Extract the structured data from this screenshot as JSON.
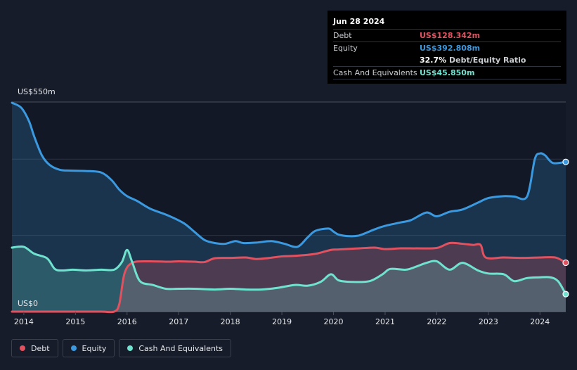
{
  "tooltip": {
    "date": "Jun 28 2024",
    "rows": [
      {
        "label": "Debt",
        "value": "US$128.342m",
        "color": "#e2515f"
      },
      {
        "label": "Equity",
        "value": "US$392.808m",
        "color": "#3b99e0"
      }
    ],
    "ratio": {
      "percent": "32.7%",
      "label": "Debt/Equity Ratio"
    },
    "cash": {
      "label": "Cash And Equivalents",
      "value": "US$45.850m",
      "color": "#6fe3cf"
    }
  },
  "legend": [
    {
      "name": "Debt",
      "color": "#e2515f"
    },
    {
      "name": "Equity",
      "color": "#3b99e0"
    },
    {
      "name": "Cash And Equivalents",
      "color": "#6fe3cf"
    }
  ],
  "chart_data": {
    "type": "area",
    "y_top_label": "US$550m",
    "y_bottom_label": "US$0",
    "ylim": [
      0,
      550
    ],
    "xlim": [
      2013.77,
      2024.5
    ],
    "x_ticks": [
      "2014",
      "2015",
      "2016",
      "2017",
      "2018",
      "2019",
      "2020",
      "2021",
      "2022",
      "2023",
      "2024"
    ],
    "grid": true,
    "legend_position": "bottom-left",
    "series": [
      {
        "name": "Equity",
        "color": "#3b99e0",
        "x": [
          2013.75,
          2013.95,
          2014.1,
          2014.2,
          2014.35,
          2014.5,
          2014.7,
          2014.9,
          2015.2,
          2015.5,
          2015.7,
          2015.85,
          2016.0,
          2016.2,
          2016.45,
          2016.8,
          2017.1,
          2017.3,
          2017.5,
          2017.7,
          2017.9,
          2018.1,
          2018.25,
          2018.5,
          2018.8,
          2019.05,
          2019.3,
          2019.5,
          2019.65,
          2019.9,
          2020.0,
          2020.1,
          2020.3,
          2020.5,
          2020.8,
          2021.0,
          2021.3,
          2021.5,
          2021.8,
          2022.0,
          2022.25,
          2022.5,
          2022.8,
          2023.0,
          2023.3,
          2023.5,
          2023.75,
          2023.9,
          2024.0,
          2024.1,
          2024.25,
          2024.5
        ],
        "y": [
          548,
          535,
          500,
          460,
          410,
          385,
          372,
          370,
          369,
          365,
          345,
          320,
          303,
          290,
          270,
          252,
          232,
          210,
          188,
          180,
          178,
          185,
          180,
          181,
          185,
          178,
          170,
          195,
          212,
          218,
          210,
          202,
          198,
          200,
          216,
          225,
          234,
          240,
          260,
          250,
          262,
          268,
          286,
          298,
          303,
          302,
          302,
          400,
          415,
          410,
          390,
          392.808
        ]
      },
      {
        "name": "Debt",
        "color": "#e2515f",
        "x": [
          2013.75,
          2014.5,
          2015.0,
          2015.5,
          2015.75,
          2015.85,
          2015.95,
          2016.1,
          2016.4,
          2016.8,
          2017.0,
          2017.3,
          2017.5,
          2017.7,
          2018.0,
          2018.3,
          2018.5,
          2018.7,
          2019.0,
          2019.2,
          2019.5,
          2019.7,
          2019.95,
          2020.1,
          2020.5,
          2020.8,
          2021.0,
          2021.3,
          2021.6,
          2022.0,
          2022.25,
          2022.5,
          2022.7,
          2022.85,
          2022.95,
          2023.3,
          2023.7,
          2024.0,
          2024.3,
          2024.5
        ],
        "y": [
          0,
          0,
          0,
          0,
          0,
          20,
          100,
          128,
          132,
          131,
          132,
          131,
          130,
          140,
          141,
          142,
          138,
          140,
          145,
          146,
          149,
          153,
          162,
          163,
          166,
          168,
          164,
          166,
          166,
          167,
          180,
          178,
          175,
          175,
          142,
          142,
          141,
          142,
          142,
          128.342
        ]
      },
      {
        "name": "Cash And Equivalents",
        "color": "#6fe3cf",
        "x": [
          2013.75,
          2014.0,
          2014.2,
          2014.45,
          2014.6,
          2014.75,
          2014.95,
          2015.2,
          2015.5,
          2015.75,
          2015.9,
          2016.0,
          2016.1,
          2016.25,
          2016.5,
          2016.75,
          2017.0,
          2017.3,
          2017.7,
          2018.0,
          2018.3,
          2018.6,
          2018.9,
          2019.25,
          2019.5,
          2019.75,
          2019.95,
          2020.1,
          2020.35,
          2020.7,
          2020.95,
          2021.1,
          2021.4,
          2021.6,
          2021.8,
          2022.0,
          2022.25,
          2022.5,
          2022.8,
          2023.0,
          2023.3,
          2023.5,
          2023.75,
          2024.0,
          2024.2,
          2024.35,
          2024.5
        ],
        "y": [
          168,
          170,
          152,
          140,
          112,
          108,
          110,
          108,
          110,
          110,
          130,
          162,
          130,
          80,
          70,
          60,
          60,
          60,
          58,
          60,
          58,
          58,
          62,
          70,
          68,
          78,
          98,
          82,
          78,
          80,
          98,
          112,
          110,
          118,
          128,
          132,
          110,
          128,
          108,
          100,
          98,
          80,
          88,
          90,
          90,
          80,
          45.85
        ]
      }
    ]
  }
}
